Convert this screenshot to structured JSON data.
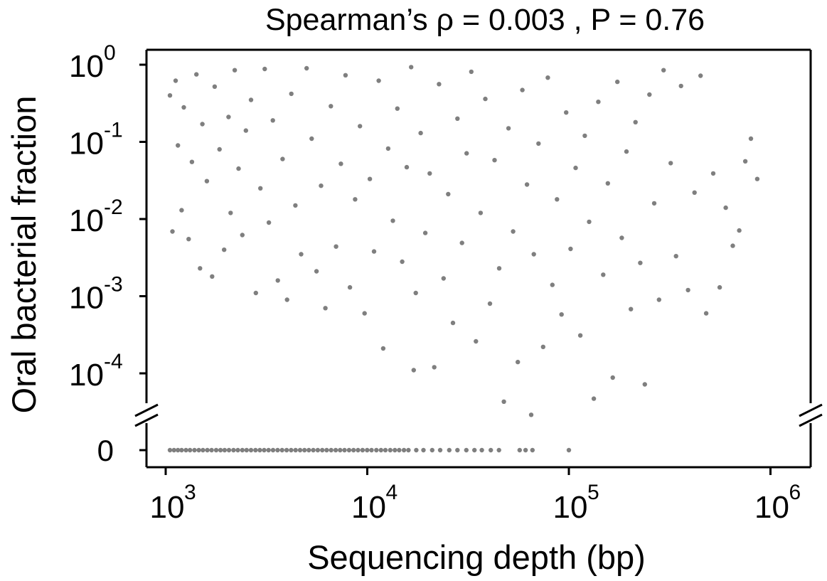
{
  "chart_data": {
    "type": "scatter",
    "title": "Spearman’s ρ = 0.003 , P = 0.76",
    "xlabel": "Sequencing depth (bp)",
    "ylabel": "Oral bacterial fraction",
    "x_scale": "log",
    "y_scale": "log",
    "x_ticks": [
      {
        "base": "10",
        "exp": "3",
        "value": 1000
      },
      {
        "base": "10",
        "exp": "4",
        "value": 10000
      },
      {
        "base": "10",
        "exp": "5",
        "value": 100000
      },
      {
        "base": "10",
        "exp": "6",
        "value": 1000000
      }
    ],
    "y_ticks": [
      {
        "base": "10",
        "exp": "0",
        "value": 1
      },
      {
        "base": "10",
        "exp": "-1",
        "value": 0.1
      },
      {
        "base": "10",
        "exp": "-2",
        "value": 0.01
      },
      {
        "base": "10",
        "exp": "-3",
        "value": 0.001
      },
      {
        "base": "10",
        "exp": "-4",
        "value": 0.0001
      }
    ],
    "y_zero_tick": "0",
    "xlim": [
      800,
      1600000
    ],
    "ylim": [
      2e-05,
      1.3
    ],
    "axis_break": true,
    "point_color": "#7f7f7f",
    "series": [
      {
        "values": [
          [
            1050,
            0.4
          ],
          [
            1080,
            0.0069
          ],
          [
            1120,
            0.62
          ],
          [
            1150,
            0.09
          ],
          [
            1200,
            0.013
          ],
          [
            1230,
            0.28
          ],
          [
            1300,
            0.0055
          ],
          [
            1350,
            0.055
          ],
          [
            1420,
            0.75
          ],
          [
            1480,
            0.0023
          ],
          [
            1520,
            0.17
          ],
          [
            1600,
            0.031
          ],
          [
            1700,
            0.0018
          ],
          [
            1750,
            0.52
          ],
          [
            1850,
            0.08
          ],
          [
            1950,
            0.004
          ],
          [
            2050,
            0.21
          ],
          [
            2100,
            0.012
          ],
          [
            2200,
            0.85
          ],
          [
            2300,
            0.045
          ],
          [
            2400,
            0.0062
          ],
          [
            2500,
            0.14
          ],
          [
            2650,
            0.35
          ],
          [
            2800,
            0.0011
          ],
          [
            2950,
            0.025
          ],
          [
            3100,
            0.88
          ],
          [
            3250,
            0.009
          ],
          [
            3400,
            0.19
          ],
          [
            3600,
            0.0016
          ],
          [
            3800,
            0.06
          ],
          [
            4000,
            0.0009
          ],
          [
            4200,
            0.42
          ],
          [
            4400,
            0.015
          ],
          [
            4700,
            0.0035
          ],
          [
            5000,
            0.9
          ],
          [
            5300,
            0.11
          ],
          [
            5600,
            0.0021
          ],
          [
            5900,
            0.027
          ],
          [
            6200,
            0.0007
          ],
          [
            6600,
            0.29
          ],
          [
            7000,
            0.0044
          ],
          [
            7400,
            0.052
          ],
          [
            7800,
            0.73
          ],
          [
            8200,
            0.0013
          ],
          [
            8700,
            0.018
          ],
          [
            9200,
            0.16
          ],
          [
            9700,
            0.0006
          ],
          [
            10300,
            0.033
          ],
          [
            10800,
            0.0038
          ],
          [
            11400,
            0.62
          ],
          [
            12000,
            0.00021
          ],
          [
            12700,
            0.082
          ],
          [
            13400,
            0.0095
          ],
          [
            14100,
            0.27
          ],
          [
            14900,
            0.0028
          ],
          [
            15700,
            0.047
          ],
          [
            16500,
            0.93
          ],
          [
            17000,
            0.00011
          ],
          [
            17400,
            0.0011
          ],
          [
            18400,
            0.13
          ],
          [
            19400,
            0.0066
          ],
          [
            20400,
            0.039
          ],
          [
            21500,
            0.00012
          ],
          [
            22700,
            0.56
          ],
          [
            23900,
            0.0017
          ],
          [
            25200,
            0.021
          ],
          [
            26600,
            0.00045
          ],
          [
            28000,
            0.2
          ],
          [
            29500,
            0.0049
          ],
          [
            31100,
            0.071
          ],
          [
            32800,
            0.81
          ],
          [
            34600,
            0.00026
          ],
          [
            36500,
            0.012
          ],
          [
            38500,
            0.36
          ],
          [
            40600,
            0.0008
          ],
          [
            42800,
            0.058
          ],
          [
            45100,
            0.0023
          ],
          [
            47600,
            4.3e-05
          ],
          [
            50200,
            0.15
          ],
          [
            52900,
            0.0069
          ],
          [
            55800,
            0.00014
          ],
          [
            58800,
            0.47
          ],
          [
            62000,
            0.028
          ],
          [
            65000,
            2.9e-05
          ],
          [
            67000,
            0.0035
          ],
          [
            70700,
            0.095
          ],
          [
            74500,
            0.00022
          ],
          [
            78600,
            0.68
          ],
          [
            82800,
            0.0014
          ],
          [
            87300,
            0.018
          ],
          [
            92000,
            0.00058
          ],
          [
            97000,
            0.24
          ],
          [
            102000,
            0.0041
          ],
          [
            108000,
            0.046
          ],
          [
            114000,
            0.00031
          ],
          [
            120000,
            0.12
          ],
          [
            126000,
            0.0092
          ],
          [
            133000,
            4.7e-05
          ],
          [
            140000,
            0.33
          ],
          [
            148000,
            0.0019
          ],
          [
            156000,
            0.029
          ],
          [
            165000,
            8.8e-05
          ],
          [
            174000,
            0.6
          ],
          [
            183000,
            0.0057
          ],
          [
            193000,
            0.075
          ],
          [
            203000,
            0.00068
          ],
          [
            214000,
            0.18
          ],
          [
            226000,
            0.0027
          ],
          [
            238000,
            7.2e-05
          ],
          [
            251000,
            0.41
          ],
          [
            265000,
            0.016
          ],
          [
            280000,
            0.0009
          ],
          [
            295000,
            0.85
          ],
          [
            320000,
            0.053
          ],
          [
            340000,
            0.0033
          ],
          [
            360000,
            0.53
          ],
          [
            390000,
            0.0012
          ],
          [
            420000,
            0.022
          ],
          [
            450000,
            0.72
          ],
          [
            480000,
            0.0006
          ],
          [
            520000,
            0.039
          ],
          [
            560000,
            0.0013
          ],
          [
            600000,
            0.014
          ],
          [
            650000,
            0.0045
          ],
          [
            700000,
            0.0071
          ],
          [
            750000,
            0.056
          ],
          [
            800000,
            0.11
          ],
          [
            860000,
            0.033
          ]
        ]
      }
    ],
    "zero_points_x": [
      1050,
      1100,
      1150,
      1200,
      1260,
      1320,
      1390,
      1460,
      1530,
      1610,
      1690,
      1780,
      1870,
      1960,
      2060,
      2170,
      2280,
      2400,
      2520,
      2650,
      2790,
      2930,
      3080,
      3240,
      3410,
      3590,
      3780,
      3980,
      4190,
      4410,
      4640,
      4880,
      5130,
      5400,
      5680,
      5980,
      6290,
      6620,
      6970,
      7330,
      7710,
      8120,
      8550,
      9000,
      9480,
      9980,
      10500,
      11100,
      11700,
      12300,
      13000,
      13700,
      14400,
      15200,
      16000,
      17500,
      19000,
      21000,
      23000,
      25500,
      28000,
      31000,
      34000,
      37000,
      41000,
      45000,
      57000,
      61000,
      66000,
      100000
    ]
  }
}
